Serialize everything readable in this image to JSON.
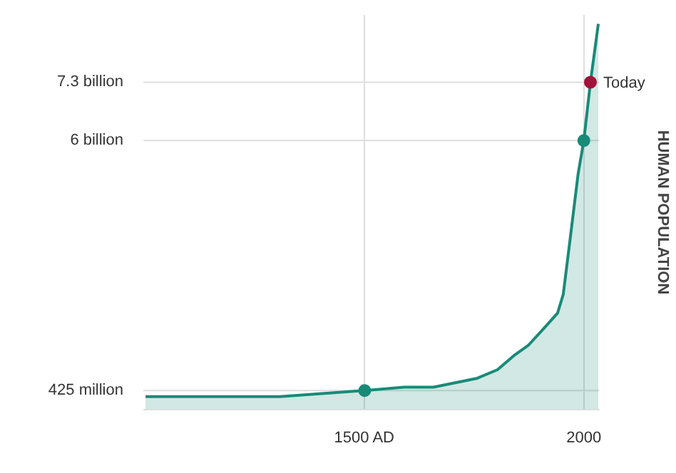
{
  "chart_data": {
    "type": "area",
    "ylabel": "HUMAN POPULATION",
    "xlim": [
      995,
      2035
    ],
    "ylim": [
      0,
      8800000000
    ],
    "xticks": [
      {
        "value": 1500,
        "label": "1500 AD"
      },
      2000
    ],
    "yticks": [
      {
        "value": 425000000,
        "label": "425 million"
      },
      {
        "value": 6000000000,
        "label": "6 billion"
      },
      {
        "value": 7300000000,
        "label": "7.3 billion"
      }
    ],
    "grid": true,
    "series": [
      {
        "color": "#1a8a78",
        "x": [
          1000,
          1307,
          1500,
          1590,
          1657,
          1757,
          1803,
          1840,
          1873,
          1917,
          1940,
          1953,
          1967,
          1987,
          2000,
          2015,
          2033
        ],
        "values": [
          290000000,
          290000000,
          425000000,
          500000000,
          500000000,
          700000000,
          890000000,
          1200000000,
          1430000000,
          1900000000,
          2150000000,
          2570000000,
          3670000000,
          5260000000,
          6000000000,
          7300000000,
          8600000000
        ]
      },
      {
        "type": "scatter",
        "marker": "circle",
        "x": [
          1500,
          2000,
          2015
        ],
        "values": [
          425000000,
          6000000000,
          7300000000
        ],
        "colors": [
          "#1a8a78",
          "#1a8a78",
          "#a3123a"
        ]
      }
    ],
    "annotations": [
      {
        "text": "Today",
        "x": 2015,
        "y": 7300000000
      }
    ]
  }
}
